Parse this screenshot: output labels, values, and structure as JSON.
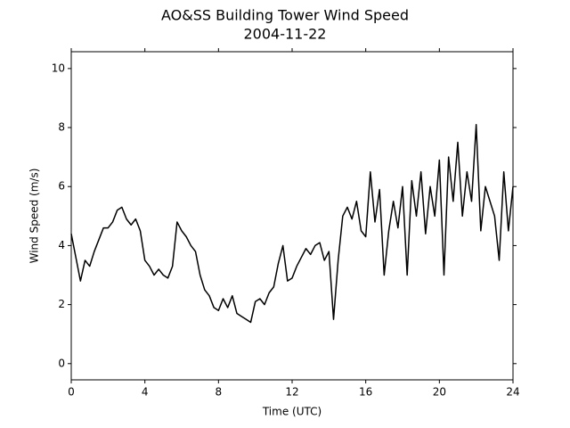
{
  "chart_data": {
    "type": "line",
    "title": "AO&SS Building Tower Wind Speed",
    "subtitle": "2004-11-22",
    "xlabel": "Time (UTC)",
    "ylabel": "Wind Speed (m/s)",
    "color": "#000000",
    "x": [
      0,
      0.25,
      0.5,
      0.75,
      1,
      1.25,
      1.5,
      1.75,
      2,
      2.25,
      2.5,
      2.75,
      3,
      3.25,
      3.5,
      3.75,
      4,
      4.25,
      4.5,
      4.75,
      5,
      5.25,
      5.5,
      5.75,
      6,
      6.25,
      6.5,
      6.75,
      7,
      7.25,
      7.5,
      7.75,
      8,
      8.25,
      8.5,
      8.75,
      9,
      9.25,
      9.5,
      9.75,
      10,
      10.25,
      10.5,
      10.75,
      11,
      11.25,
      11.5,
      11.75,
      12,
      12.25,
      12.5,
      12.75,
      13,
      13.25,
      13.5,
      13.75,
      14,
      14.25,
      14.5,
      14.75,
      15,
      15.25,
      15.5,
      15.75,
      16,
      16.25,
      16.5,
      16.75,
      17,
      17.25,
      17.5,
      17.75,
      18,
      18.25,
      18.5,
      18.75,
      19,
      19.25,
      19.5,
      19.75,
      20,
      20.25,
      20.5,
      20.75,
      21,
      21.25,
      21.5,
      21.75,
      22,
      22.25,
      22.5,
      22.75,
      23,
      23.25,
      23.5,
      23.75,
      24
    ],
    "values": [
      4.4,
      3.6,
      2.8,
      3.5,
      3.3,
      3.8,
      4.2,
      4.6,
      4.6,
      4.8,
      5.2,
      5.3,
      4.9,
      4.7,
      4.9,
      4.5,
      3.5,
      3.3,
      3.0,
      3.2,
      3.0,
      2.9,
      3.3,
      4.8,
      4.5,
      4.3,
      4.0,
      3.8,
      3.0,
      2.5,
      2.3,
      1.9,
      1.8,
      2.2,
      1.9,
      2.3,
      1.7,
      1.6,
      1.5,
      1.4,
      2.1,
      2.2,
      2.0,
      2.4,
      2.6,
      3.4,
      4.0,
      2.8,
      2.9,
      3.3,
      3.6,
      3.9,
      3.7,
      4.0,
      4.1,
      3.5,
      3.8,
      1.5,
      3.5,
      5.0,
      5.3,
      4.9,
      5.5,
      4.5,
      4.3,
      6.5,
      4.8,
      5.9,
      3.0,
      4.5,
      5.5,
      4.6,
      6.0,
      3.0,
      6.2,
      5.0,
      6.5,
      4.4,
      6.0,
      5.0,
      6.9,
      3.0,
      7.0,
      5.5,
      7.5,
      5.0,
      6.5,
      5.5,
      8.1,
      4.5,
      6.0,
      5.5,
      5.0,
      3.5,
      6.5,
      4.5,
      6.0
    ],
    "xlim": [
      0,
      24
    ],
    "xticks": [
      0,
      4,
      8,
      12,
      16,
      20,
      24
    ],
    "ylim": [
      -0.55,
      10.57
    ],
    "yticks": [
      0,
      2,
      4,
      6,
      8,
      10
    ]
  }
}
